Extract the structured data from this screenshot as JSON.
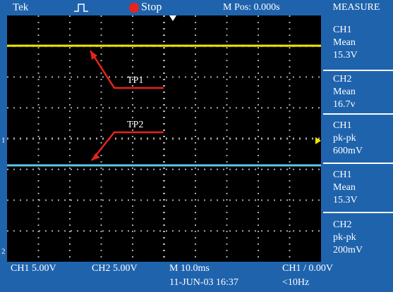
{
  "header": {
    "brand": "Tek",
    "status": "Stop",
    "position": "M Pos: 0.000s"
  },
  "measure": {
    "title": "MEASURE",
    "items": [
      {
        "channel": "CH1",
        "type": "Mean",
        "value": "15.3V"
      },
      {
        "channel": "CH2",
        "type": "Mean",
        "value": "16.7v"
      },
      {
        "channel": "CH1",
        "type": "pk-pk",
        "value": "600mV"
      },
      {
        "channel": "CH1",
        "type": "Mean",
        "value": "15.3V"
      },
      {
        "channel": "CH2",
        "type": "pk-pk",
        "value": "200mV"
      }
    ]
  },
  "annotations": [
    "TP1",
    "TP2"
  ],
  "markers": [
    "1",
    "2"
  ],
  "footer": {
    "ch1_scale": "CH1  5.00V",
    "ch2_scale": "CH2  5.00V",
    "timebase": "M 10.0ms",
    "datetime": "11-JUN-03 16:37",
    "trigger": "CH1 / 0.00V",
    "frequency": "<10Hz"
  }
}
